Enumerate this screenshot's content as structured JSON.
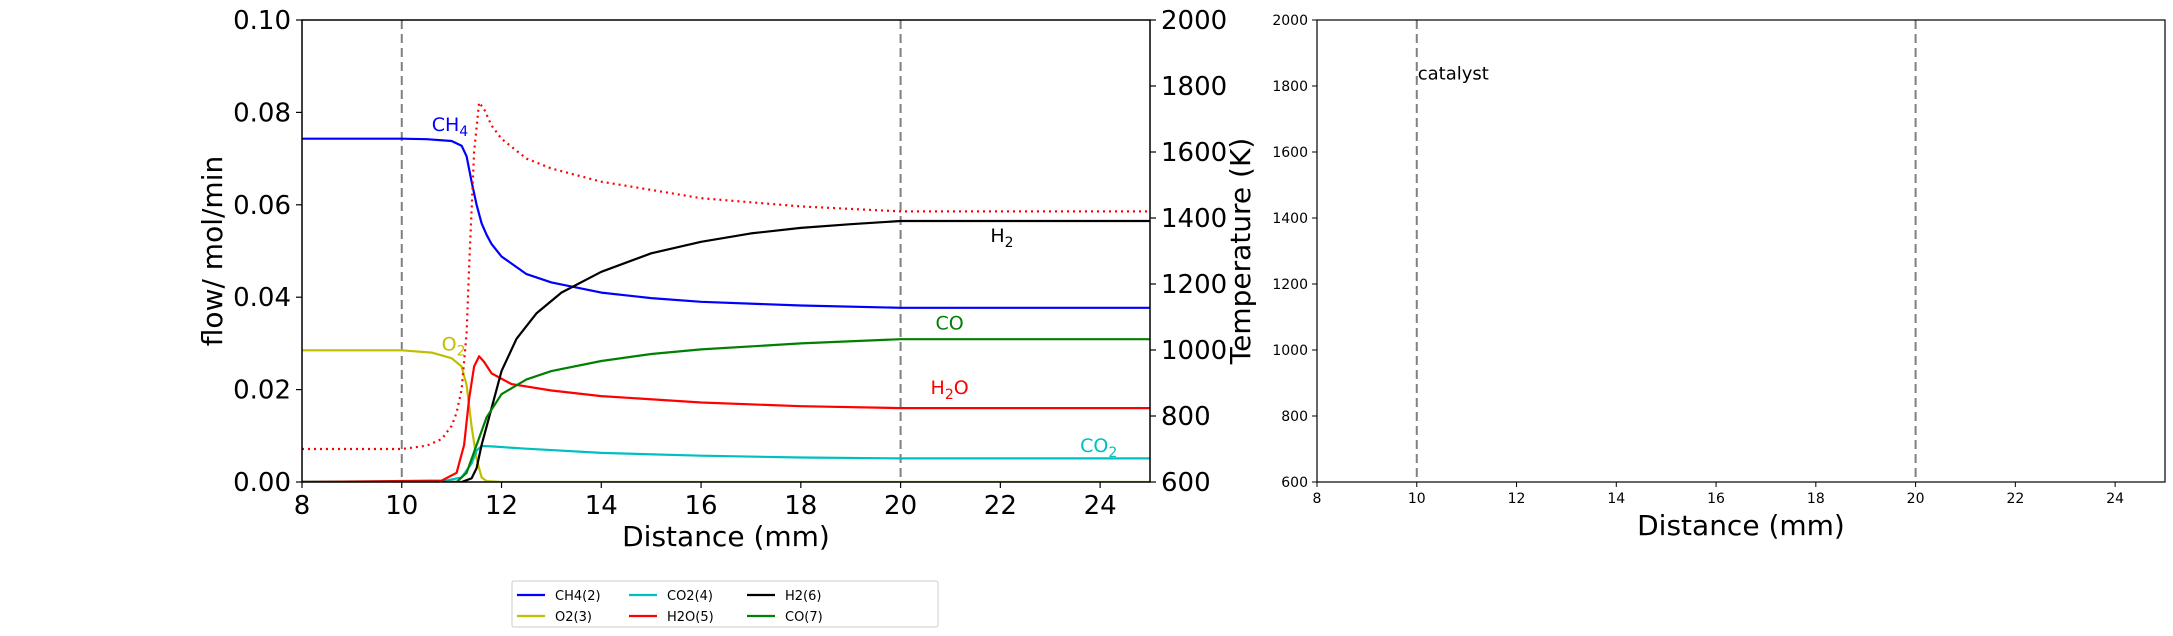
{
  "chart_data": [
    {
      "type": "line",
      "xlabel": "Distance (mm)",
      "ylabel": "flow/ mol/min",
      "y2label": "Temperature (K)",
      "xlim": [
        8,
        25
      ],
      "ylim": [
        0,
        0.1
      ],
      "y2lim": [
        600,
        2000
      ],
      "xticks": [
        8,
        10,
        12,
        14,
        16,
        18,
        20,
        22,
        24
      ],
      "yticks": [
        0.0,
        0.02,
        0.04,
        0.06,
        0.08,
        0.1
      ],
      "y2ticks": [
        600,
        800,
        1000,
        1200,
        1400,
        1600,
        1800,
        2000
      ],
      "vlines": [
        10,
        20
      ],
      "grid": false,
      "series": [
        {
          "name": "CH4(2)",
          "color": "#0000ff",
          "axis": "left",
          "x": [
            8,
            10,
            10.5,
            11.0,
            11.2,
            11.3,
            11.4,
            11.5,
            11.6,
            11.7,
            11.8,
            12.0,
            12.5,
            13,
            14,
            15,
            16,
            18,
            20,
            22,
            25
          ],
          "y": [
            0.0743,
            0.0743,
            0.0742,
            0.0738,
            0.0728,
            0.0705,
            0.065,
            0.06,
            0.056,
            0.0535,
            0.0515,
            0.0488,
            0.045,
            0.0432,
            0.041,
            0.0398,
            0.039,
            0.0382,
            0.0377,
            0.0377,
            0.0377
          ]
        },
        {
          "name": "O2(3)",
          "color": "#bfbf00",
          "axis": "left",
          "x": [
            8,
            10,
            10.6,
            11.0,
            11.2,
            11.3,
            11.4,
            11.5,
            11.6,
            11.7,
            12,
            25
          ],
          "y": [
            0.0285,
            0.0285,
            0.028,
            0.0268,
            0.025,
            0.021,
            0.012,
            0.005,
            0.001,
            0.0002,
            0,
            0
          ]
        },
        {
          "name": "CO2(4)",
          "color": "#00bfbf",
          "axis": "left",
          "x": [
            8,
            10.8,
            11.2,
            11.4,
            11.5,
            11.6,
            11.8,
            12.5,
            14,
            16,
            18,
            20,
            25
          ],
          "y": [
            0,
            0.0001,
            0.001,
            0.004,
            0.0068,
            0.0078,
            0.0077,
            0.0072,
            0.0063,
            0.0057,
            0.0053,
            0.0051,
            0.0051
          ]
        },
        {
          "name": "H2O(5)",
          "color": "#ff0000",
          "axis": "left",
          "x": [
            8,
            10.8,
            11.1,
            11.25,
            11.35,
            11.45,
            11.55,
            11.65,
            11.8,
            12.2,
            13,
            14,
            16,
            18,
            20,
            25
          ],
          "y": [
            0,
            0.0003,
            0.002,
            0.008,
            0.018,
            0.025,
            0.0272,
            0.026,
            0.0235,
            0.0212,
            0.0198,
            0.0186,
            0.0172,
            0.0164,
            0.016,
            0.016
          ]
        },
        {
          "name": "H2(6)",
          "color": "#000000",
          "axis": "left",
          "x": [
            8,
            11.2,
            11.4,
            11.5,
            11.6,
            11.8,
            12.0,
            12.3,
            12.7,
            13.2,
            14,
            15,
            16,
            17,
            18,
            19,
            20,
            25
          ],
          "y": [
            0,
            0,
            0.0008,
            0.003,
            0.008,
            0.016,
            0.024,
            0.031,
            0.0365,
            0.041,
            0.0455,
            0.0495,
            0.052,
            0.0538,
            0.055,
            0.0558,
            0.0565,
            0.0565
          ]
        },
        {
          "name": "CO(7)",
          "color": "#008000",
          "axis": "left",
          "x": [
            8,
            11.1,
            11.3,
            11.5,
            11.7,
            12.0,
            12.5,
            13,
            14,
            15,
            16,
            18,
            20,
            25
          ],
          "y": [
            0,
            0,
            0.002,
            0.008,
            0.014,
            0.019,
            0.0222,
            0.024,
            0.0262,
            0.0277,
            0.0287,
            0.03,
            0.0309,
            0.0309
          ]
        },
        {
          "name": "",
          "color": "#ff0000",
          "axis": "right",
          "dotted": true,
          "x": [
            8,
            10,
            10.5,
            10.8,
            11.0,
            11.1,
            11.2,
            11.3,
            11.35,
            11.45,
            11.55,
            11.65,
            11.8,
            12.0,
            12.5,
            13,
            14,
            15,
            16,
            18,
            20,
            25
          ],
          "y": [
            700,
            700,
            710,
            730,
            770,
            810,
            880,
            1050,
            1250,
            1600,
            1750,
            1730,
            1680,
            1640,
            1580,
            1550,
            1510,
            1485,
            1460,
            1435,
            1420,
            1420
          ]
        }
      ],
      "annotations": [
        {
          "x": 10.6,
          "y": 0.076,
          "text": "CH",
          "sub": "4",
          "tail": "",
          "color": "#0000ff"
        },
        {
          "x": 21.8,
          "y": 0.052,
          "text": "H",
          "sub": "2",
          "tail": "",
          "color": "#000000"
        },
        {
          "x": 20.7,
          "y": 0.033,
          "text": "CO",
          "sub": "",
          "tail": "",
          "color": "#008000"
        },
        {
          "x": 20.6,
          "y": 0.019,
          "text": "H",
          "sub": "2",
          "tail": "O",
          "color": "#ff0000"
        },
        {
          "x": 23.6,
          "y": 0.0065,
          "text": "CO",
          "sub": "2",
          "tail": "",
          "color": "#00bfbf"
        },
        {
          "x": 10.8,
          "y": 0.0285,
          "text": "O",
          "sub": "2",
          "tail": "",
          "color": "#bfbf00"
        }
      ],
      "legend": "bottom-center"
    },
    {
      "type": "line",
      "xlabel": "Distance (mm)",
      "xlim": [
        8,
        25
      ],
      "ylim": [
        600,
        2000
      ],
      "xticks": [
        8,
        10,
        12,
        14,
        16,
        18,
        20,
        22,
        24
      ],
      "yticks": [
        600,
        800,
        1000,
        1200,
        1400,
        1600,
        1800,
        2000
      ],
      "vlines": [
        10,
        20
      ],
      "annotations": [
        {
          "x": 10.0,
          "y": 1820,
          "text": "catalyst",
          "color": "#000000"
        }
      ],
      "series": []
    }
  ]
}
